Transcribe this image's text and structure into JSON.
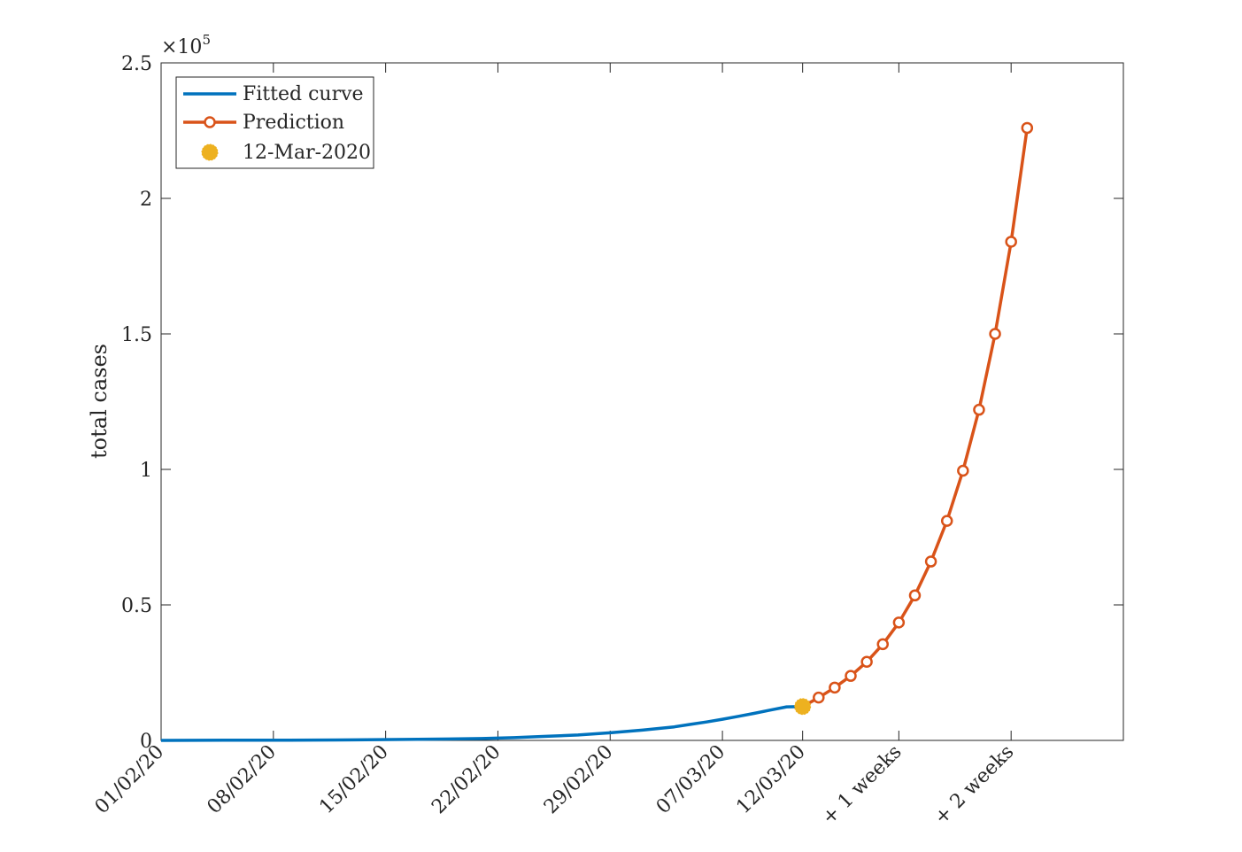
{
  "chart_data": {
    "type": "line",
    "title": "",
    "xlabel": "",
    "ylabel": "total cases",
    "y_exponent_label": "×10",
    "y_exponent_power": "5",
    "ylim": [
      0,
      250000
    ],
    "xlim": [
      0,
      60
    ],
    "grid": false,
    "legend_position": "top-left",
    "y_ticks": [
      {
        "value": 0,
        "label": "0"
      },
      {
        "value": 50000,
        "label": "0.5"
      },
      {
        "value": 100000,
        "label": "1"
      },
      {
        "value": 150000,
        "label": "1.5"
      },
      {
        "value": 200000,
        "label": "2"
      },
      {
        "value": 250000,
        "label": "2.5"
      }
    ],
    "x_ticks": [
      {
        "value": 0,
        "label": "01/02/20"
      },
      {
        "value": 7,
        "label": "08/02/20"
      },
      {
        "value": 14,
        "label": "15/02/20"
      },
      {
        "value": 21,
        "label": "22/02/20"
      },
      {
        "value": 28,
        "label": "29/02/20"
      },
      {
        "value": 35,
        "label": "07/03/20"
      },
      {
        "value": 40,
        "label": "12/03/20"
      },
      {
        "value": 46,
        "label": "+ 1 weeks"
      },
      {
        "value": 53,
        "label": "+ 2 weeks"
      }
    ],
    "series": [
      {
        "name": "Fitted curve",
        "color": "#0072BD",
        "style": "line",
        "x": [
          0,
          4,
          8,
          12,
          16,
          20,
          22,
          24,
          26,
          28,
          30,
          32,
          33,
          34,
          35,
          36,
          37,
          38,
          39,
          40
        ],
        "y": [
          0,
          50,
          100,
          200,
          400,
          700,
          1000,
          1500,
          2000,
          2800,
          3800,
          5000,
          5900,
          6800,
          7800,
          8900,
          10000,
          11200,
          12400,
          12500
        ]
      },
      {
        "name": "Prediction",
        "color": "#D95319",
        "style": "line-circle",
        "x": [
          40,
          41,
          42,
          43,
          44,
          45,
          46,
          47,
          48,
          49,
          50,
          51,
          52,
          53,
          54
        ],
        "y": [
          12500,
          15800,
          19500,
          23800,
          29000,
          35500,
          43500,
          53500,
          66000,
          81000,
          99500,
          122000,
          150000,
          184000,
          226000
        ]
      },
      {
        "name": "12-Mar-2020",
        "color": "#EDB120",
        "style": "marker",
        "x": [
          40
        ],
        "y": [
          12500
        ]
      }
    ]
  }
}
